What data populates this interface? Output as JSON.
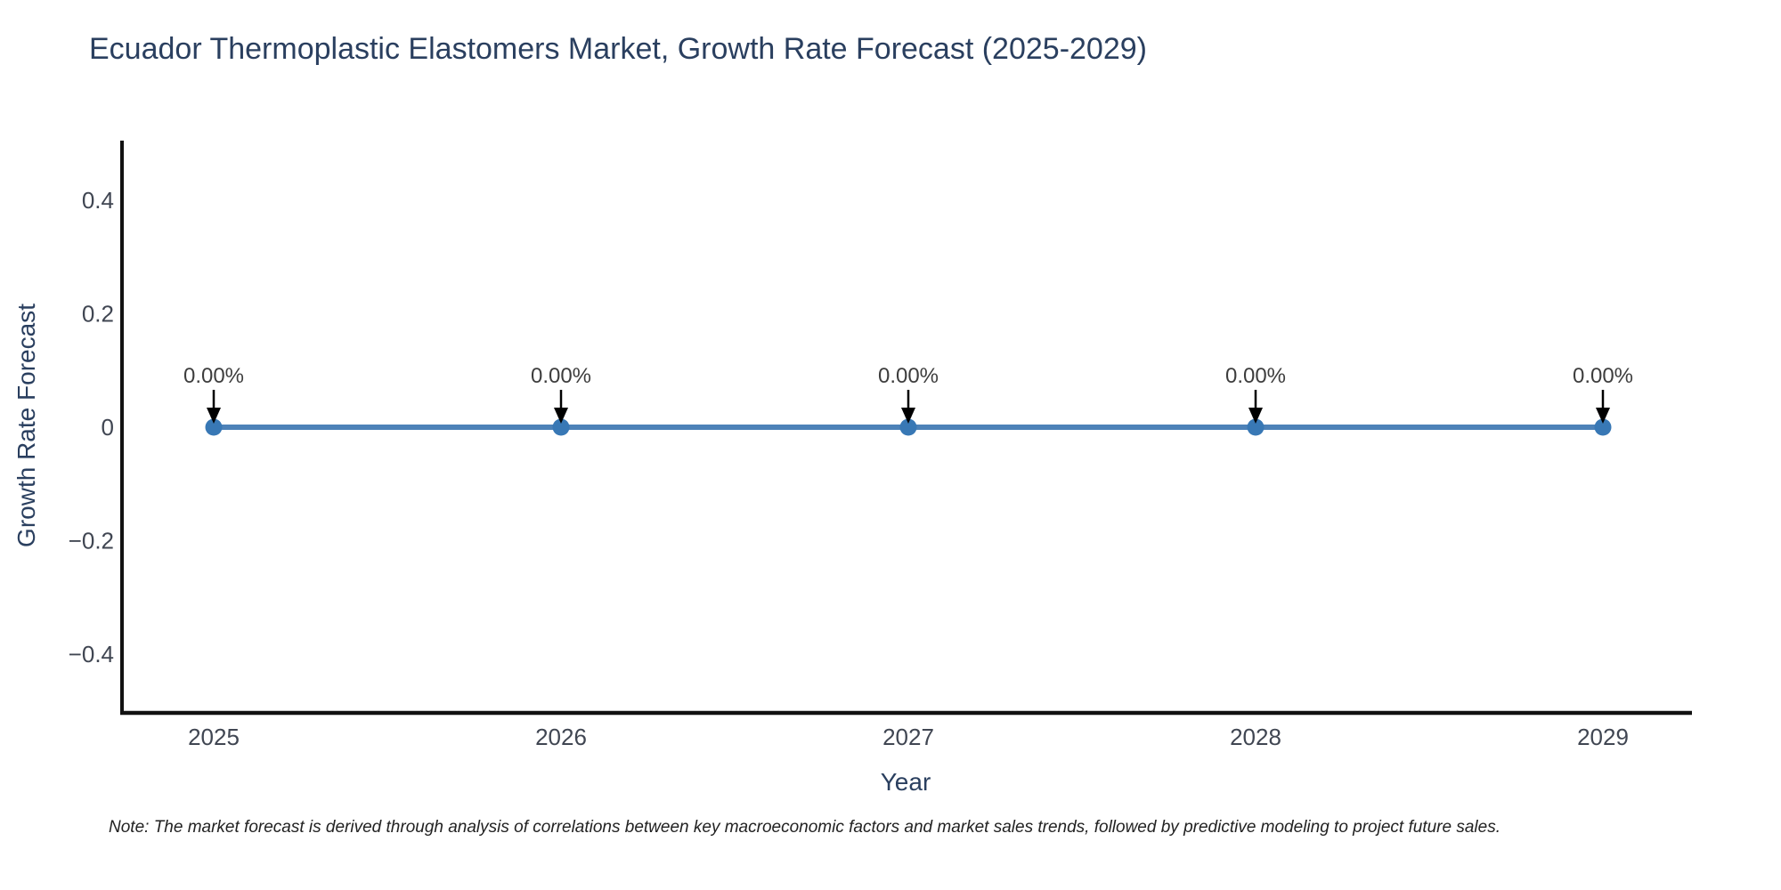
{
  "page": {
    "note": "Note: The market forecast is derived through analysis of correlations between key macroeconomic factors and market sales trends, followed by predictive modeling to project future sales."
  },
  "chart_data": {
    "type": "line",
    "title": "Ecuador Thermoplastic Elastomers Market, Growth Rate Forecast (2025-2029)",
    "x": [
      "2025",
      "2026",
      "2027",
      "2028",
      "2029"
    ],
    "series": [
      {
        "name": "Growth Rate Forecast",
        "values": [
          0,
          0,
          0,
          0,
          0
        ]
      }
    ],
    "point_labels": [
      "0.00%",
      "0.00%",
      "0.00%",
      "0.00%",
      "0.00%"
    ],
    "xlabel": "Year",
    "ylabel": "Growth Rate Forecast",
    "ylim": [
      -0.5,
      0.5
    ],
    "yticks": [
      0.4,
      0.2,
      0,
      -0.2,
      -0.4
    ],
    "ytick_labels": [
      "0.4",
      "0.2",
      "0",
      "−0.2",
      "−0.4"
    ],
    "grid": false,
    "legend_position": "none",
    "annotations_have_arrows": true,
    "colors": {
      "line": "#4d82b8",
      "marker": "#3878b5",
      "axis": "#111111",
      "title_text": "#2a3f5f",
      "tick_text": "#404652",
      "annotation_text": "#3d3d3d",
      "arrow": "#000000",
      "background": "#ffffff"
    }
  }
}
